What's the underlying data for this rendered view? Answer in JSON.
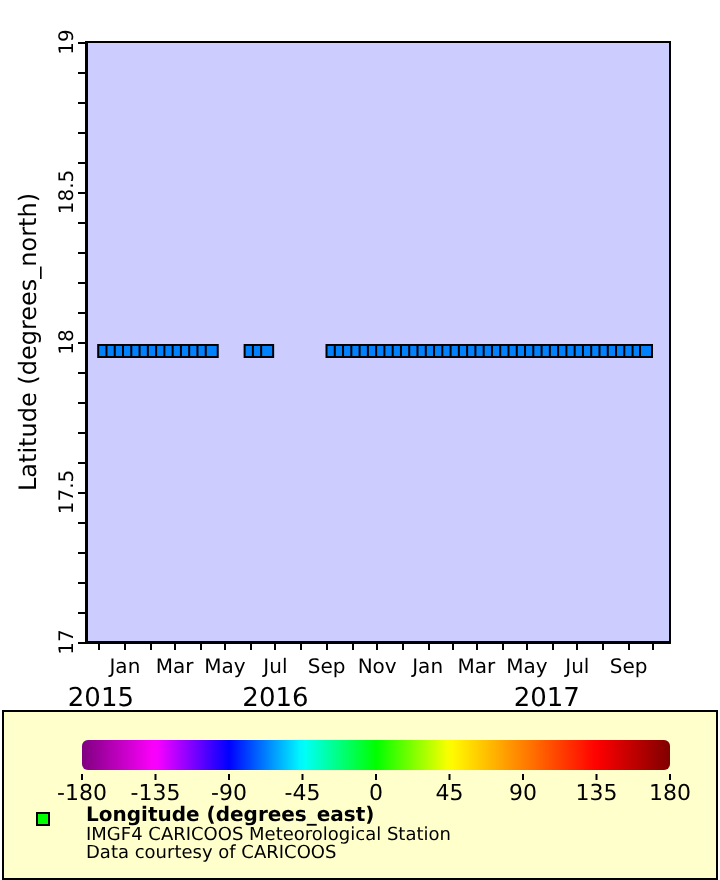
{
  "chart_data": {
    "type": "scatter",
    "ylabel": "Latitude (degrees_north)",
    "clabel": "Longitude (degrees_east)",
    "annotations": [
      "IMGF4 CARICOOS Meteorological Station",
      "Data courtesy of CARICOOS"
    ],
    "marker": "square",
    "grid": false,
    "xlim": [
      "2015-11-15",
      "2017-10-21"
    ],
    "xticks": [
      {
        "value": "2015-12-01",
        "label": null
      },
      {
        "value": "2016-01-01",
        "label": "Jan"
      },
      {
        "value": "2016-02-01",
        "label": null
      },
      {
        "value": "2016-03-01",
        "label": "Mar"
      },
      {
        "value": "2016-04-01",
        "label": null
      },
      {
        "value": "2016-05-01",
        "label": "May"
      },
      {
        "value": "2016-06-01",
        "label": null
      },
      {
        "value": "2016-07-01",
        "label": "Jul"
      },
      {
        "value": "2016-08-01",
        "label": null
      },
      {
        "value": "2016-09-01",
        "label": "Sep"
      },
      {
        "value": "2016-10-01",
        "label": null
      },
      {
        "value": "2016-11-01",
        "label": "Nov"
      },
      {
        "value": "2016-12-01",
        "label": null
      },
      {
        "value": "2017-01-01",
        "label": "Jan"
      },
      {
        "value": "2017-02-01",
        "label": null
      },
      {
        "value": "2017-03-01",
        "label": "Mar"
      },
      {
        "value": "2017-04-01",
        "label": null
      },
      {
        "value": "2017-05-01",
        "label": "May"
      },
      {
        "value": "2017-06-01",
        "label": null
      },
      {
        "value": "2017-07-01",
        "label": "Jul"
      },
      {
        "value": "2017-08-01",
        "label": null
      },
      {
        "value": "2017-09-01",
        "label": "Sep"
      },
      {
        "value": "2017-10-01",
        "label": null
      }
    ],
    "x2lim": [
      "2015-11-15",
      "2017-10-21"
    ],
    "x2ticks": [
      {
        "value": "2015-12-03",
        "label": "2015"
      },
      {
        "value": "2016-07-01",
        "label": "2016"
      },
      {
        "value": "2017-05-25",
        "label": "2017"
      }
    ],
    "ylim": [
      17,
      19
    ],
    "yticks": [
      17,
      {
        "value": 17.1,
        "label": null
      },
      {
        "value": 17.2,
        "label": null
      },
      {
        "value": 17.3,
        "label": null
      },
      {
        "value": 17.4,
        "label": null
      },
      17.5,
      {
        "value": 17.6,
        "label": null
      },
      {
        "value": 17.7,
        "label": null
      },
      {
        "value": 17.8,
        "label": null
      },
      {
        "value": 17.9,
        "label": null
      },
      18,
      {
        "value": 18.1,
        "label": null
      },
      {
        "value": 18.2,
        "label": null
      },
      {
        "value": 18.3,
        "label": null
      },
      {
        "value": 18.4,
        "label": null
      },
      18.5,
      {
        "value": 18.6,
        "label": null
      },
      {
        "value": 18.7,
        "label": null
      },
      {
        "value": 18.8,
        "label": null
      },
      {
        "value": 18.9,
        "label": null
      },
      19
    ],
    "clim": [
      -180,
      180
    ],
    "cticks": [
      -180,
      -135,
      -90,
      -45,
      0,
      45,
      90,
      135,
      180
    ],
    "x": [
      "2015-12-07",
      "2015-12-17",
      "2015-12-27",
      "2016-01-06",
      "2016-01-16",
      "2016-01-26",
      "2016-02-05",
      "2016-02-15",
      "2016-02-25",
      "2016-03-06",
      "2016-03-16",
      "2016-03-26",
      "2016-04-05",
      "2016-04-15",
      "2016-06-01",
      "2016-06-11",
      "2016-06-21",
      "2016-09-08",
      "2016-09-18",
      "2016-09-28",
      "2016-10-08",
      "2016-10-18",
      "2016-10-28",
      "2016-11-07",
      "2016-11-17",
      "2016-11-27",
      "2016-12-07",
      "2016-12-17",
      "2016-12-27",
      "2017-01-06",
      "2017-01-16",
      "2017-01-26",
      "2017-02-05",
      "2017-02-15",
      "2017-02-25",
      "2017-03-07",
      "2017-03-17",
      "2017-03-27",
      "2017-04-06",
      "2017-04-16",
      "2017-04-26",
      "2017-05-06",
      "2017-05-16",
      "2017-05-26",
      "2017-06-05",
      "2017-06-15",
      "2017-06-25",
      "2017-07-05",
      "2017-07-15",
      "2017-07-25",
      "2017-08-04",
      "2017-08-14",
      "2017-08-24",
      "2017-09-03",
      "2017-09-13",
      "2017-09-22"
    ],
    "values": [
      17.97,
      17.97,
      17.97,
      17.97,
      17.97,
      17.97,
      17.97,
      17.97,
      17.97,
      17.97,
      17.97,
      17.97,
      17.97,
      17.97,
      17.97,
      17.97,
      17.97,
      17.97,
      17.97,
      17.97,
      17.97,
      17.97,
      17.97,
      17.97,
      17.97,
      17.97,
      17.97,
      17.97,
      17.97,
      17.97,
      17.97,
      17.97,
      17.97,
      17.97,
      17.97,
      17.97,
      17.97,
      17.97,
      17.97,
      17.97,
      17.97,
      17.97,
      17.97,
      17.97,
      17.97,
      17.97,
      17.97,
      17.97,
      17.97,
      17.97,
      17.97,
      17.97,
      17.97,
      17.97,
      17.97,
      17.97
    ],
    "cvalues": [
      -67,
      -67,
      -67,
      -67,
      -67,
      -67,
      -67,
      -67,
      -67,
      -67,
      -67,
      -67,
      -67,
      -67,
      -67,
      -67,
      -67,
      -67,
      -67,
      -67,
      -67,
      -67,
      -67,
      -67,
      -67,
      -67,
      -67,
      -67,
      -67,
      -67,
      -67,
      -67,
      -67,
      -67,
      -67,
      -67,
      -67,
      -67,
      -67,
      -67,
      -67,
      -67,
      -67,
      -67,
      -67,
      -67,
      -67,
      -67,
      -67,
      -67,
      -67,
      -67,
      -67,
      -67,
      -67,
      -67
    ]
  }
}
